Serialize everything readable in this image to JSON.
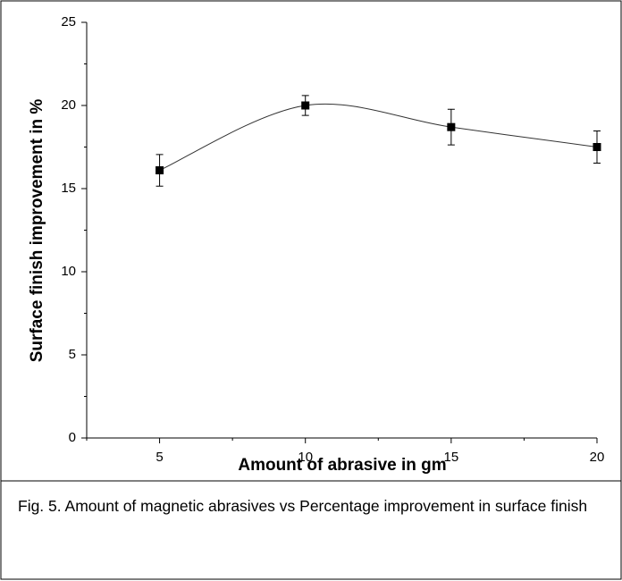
{
  "chart_data": {
    "type": "scatter",
    "xlabel": "Amount of abrasive in gm",
    "ylabel": "Surface finish improvement in %",
    "caption": "Fig. 5. Amount of magnetic abrasives vs Percentage improvement in surface finish",
    "x": [
      5,
      10,
      15,
      20
    ],
    "values": [
      16.1,
      20.0,
      18.7,
      17.5
    ],
    "errors": [
      0.95,
      0.6,
      1.07,
      0.97
    ],
    "color": "#000000",
    "smooth_line": true,
    "xlim": [
      2.5,
      20
    ],
    "xticks": [
      5,
      10,
      15,
      20
    ],
    "xminorticks": [
      2.5,
      7.5,
      12.5,
      17.5
    ],
    "ylim": [
      0,
      25
    ],
    "yticks": [
      0,
      5,
      10,
      15,
      20,
      25
    ],
    "yminorticks": [
      2.5,
      7.5,
      12.5,
      17.5,
      22.5
    ]
  }
}
